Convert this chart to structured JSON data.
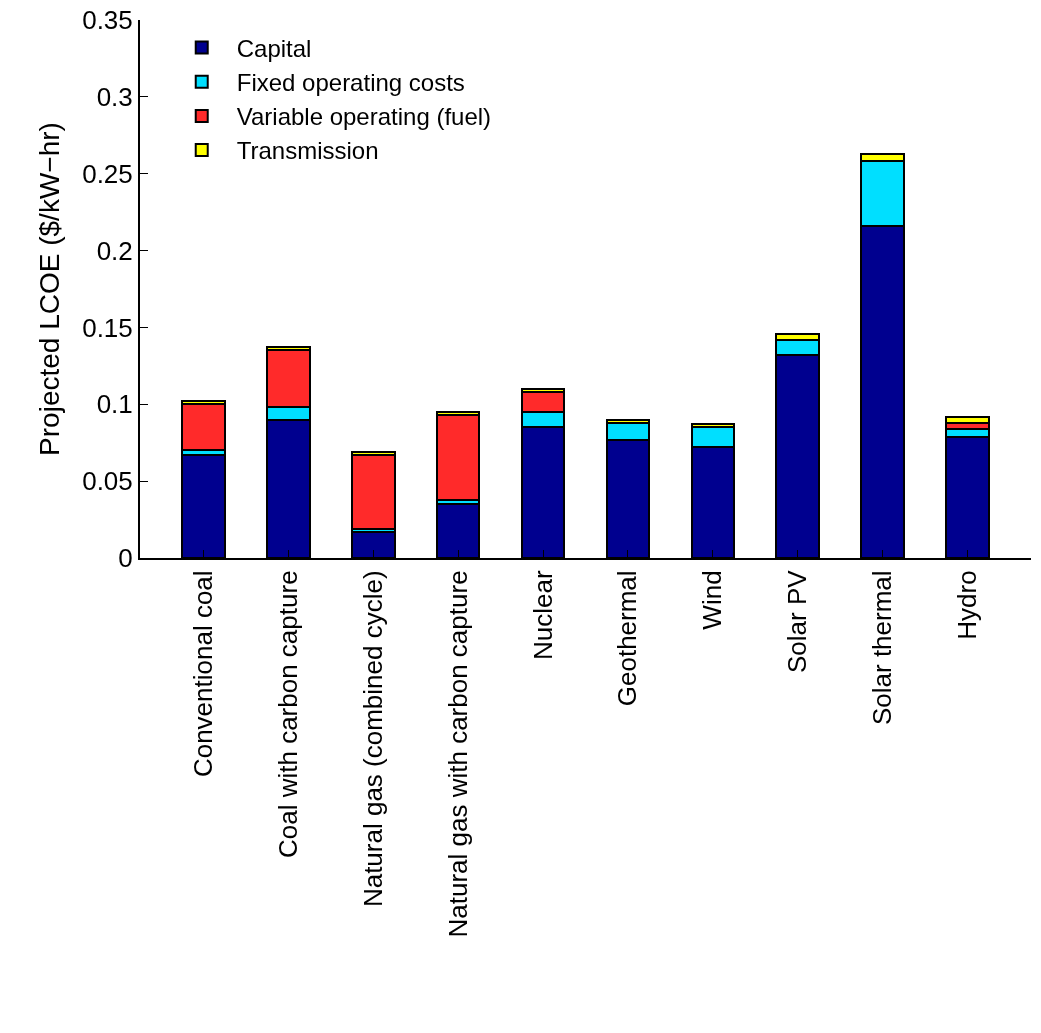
{
  "chart_data": {
    "type": "bar",
    "stacked": true,
    "ylabel": "Projected LCOE ($/kW−hr)",
    "categories": [
      "Conventional coal",
      "Coal with carbon capture",
      "Natural gas (combined cycle)",
      "Natural gas with carbon capture",
      "Nuclear",
      "Geothermal",
      "Wind",
      "Solar PV",
      "Solar thermal",
      "Hydro"
    ],
    "series": [
      {
        "name": "Capital",
        "color": "#00008f",
        "values": [
          0.067,
          0.09,
          0.017,
          0.035,
          0.085,
          0.077,
          0.072,
          0.132,
          0.216,
          0.079
        ]
      },
      {
        "name": "Fixed operating costs",
        "color": "#00dfff",
        "values": [
          0.003,
          0.008,
          0.002,
          0.003,
          0.01,
          0.011,
          0.013,
          0.01,
          0.042,
          0.005
        ]
      },
      {
        "name": "Variable operating (fuel)",
        "color": "#ff2a2a",
        "values": [
          0.03,
          0.037,
          0.048,
          0.055,
          0.013,
          0,
          0,
          0,
          0,
          0.004
        ]
      },
      {
        "name": "Transmission",
        "color": "#ffff00",
        "values": [
          0.002,
          0.002,
          0.002,
          0.002,
          0.002,
          0.002,
          0.002,
          0.004,
          0.005,
          0.004
        ]
      }
    ],
    "ylim": [
      0,
      0.35
    ],
    "yticks": [
      0,
      0.05,
      0.1,
      0.15,
      0.2,
      0.25,
      0.3,
      0.35
    ],
    "grid": false,
    "legend": "top left"
  }
}
